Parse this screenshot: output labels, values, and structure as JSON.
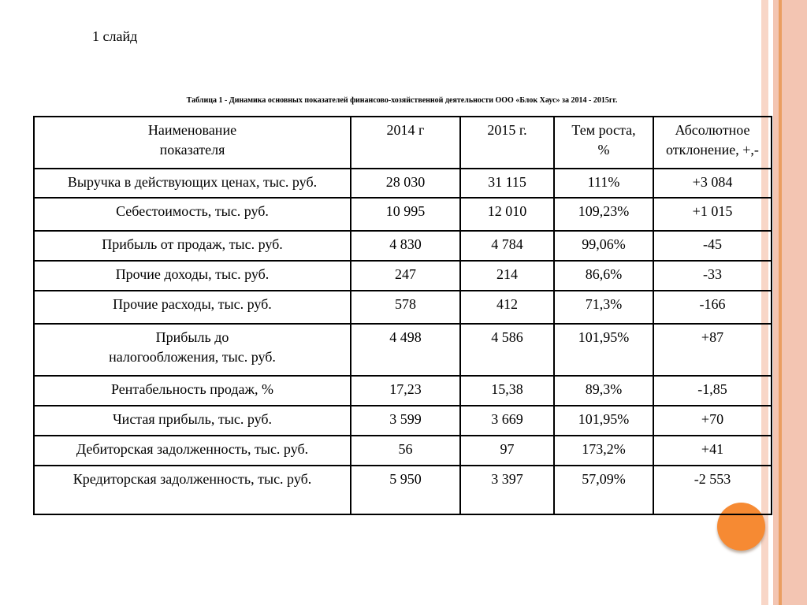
{
  "slide": {
    "page_label": "1 слайд",
    "table_caption": "Таблица 1 - Динамика основных показателей финансово-хозяйственной деятельности ООО «Блок Хаус» за 2014 - 2015гг.",
    "table": {
      "headers": [
        "Наименование\nпоказателя",
        "2014 г",
        "2015 г.",
        "Тем роста,\n%",
        "Абсолютное\nотклонение, +,-"
      ],
      "rows": [
        {
          "name": "Выручка в действующих ценах, тыс. руб.",
          "v2014": "28 030",
          "v2015": "31 115",
          "growth": "111%",
          "dev": "+3 084"
        },
        {
          "name": "Себестоимость, тыс. руб.",
          "v2014": "10 995",
          "v2015": "12 010",
          "growth": "109,23%",
          "dev": "+1 015"
        },
        {
          "name": "Прибыль от продаж, тыс. руб.",
          "v2014": "4 830",
          "v2015": "4 784",
          "growth": "99,06%",
          "dev": "-45"
        },
        {
          "name": "Прочие доходы, тыс. руб.",
          "v2014": "247",
          "v2015": "214",
          "growth": "86,6%",
          "dev": "-33"
        },
        {
          "name": "Прочие расходы, тыс. руб.",
          "v2014": "578",
          "v2015": "412",
          "growth": "71,3%",
          "dev": "-166"
        },
        {
          "name": "Прибыль до\nналогообложения, тыс. руб.",
          "v2014": "4 498",
          "v2015": "4 586",
          "growth": "101,95%",
          "dev": "+87"
        },
        {
          "name": "Рентабельность продаж, %",
          "v2014": "17,23",
          "v2015": "15,38",
          "growth": "89,3%",
          "dev": "-1,85"
        },
        {
          "name": "Чистая прибыль, тыс. руб.",
          "v2014": "3 599",
          "v2015": "3 669",
          "growth": "101,95%",
          "dev": "+70"
        },
        {
          "name": "Дебиторская задолженность, тыс. руб.",
          "v2014": "56",
          "v2015": "97",
          "growth": "173,2%",
          "dev": "+41"
        },
        {
          "name": "Кредиторская задолженность, тыс. руб.",
          "v2014": "5 950",
          "v2015": "3 397",
          "growth": "57,09%",
          "dev": "-2 553"
        }
      ]
    },
    "decor": {
      "stripe_light": "#f8d6c7",
      "stripe_band": "#f3c5b2",
      "stripe_line": "#ea9e61",
      "circle": "#f68a33"
    }
  }
}
